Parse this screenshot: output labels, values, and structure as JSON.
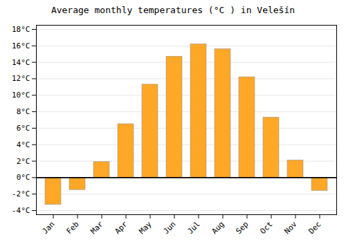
{
  "chart_data": {
    "type": "bar",
    "title": "Average monthly temperatures (°C ) in Velešín",
    "categories": [
      "Jan",
      "Feb",
      "Mar",
      "Apr",
      "May",
      "Jun",
      "Jul",
      "Aug",
      "Sep",
      "Oct",
      "Nov",
      "Dec"
    ],
    "values": [
      -3.3,
      -1.5,
      1.9,
      6.5,
      11.3,
      14.7,
      16.2,
      15.6,
      12.2,
      7.3,
      2.1,
      -1.6
    ],
    "color": "#FFA726",
    "ylim": [
      -4.5,
      18.5
    ],
    "yticks": [
      {
        "value": -4,
        "label": "-4°C"
      },
      {
        "value": -2,
        "label": "-2°C"
      },
      {
        "value": 0,
        "label": "0°C"
      },
      {
        "value": 2,
        "label": "2°C"
      },
      {
        "value": 4,
        "label": "4°C"
      },
      {
        "value": 6,
        "label": "6°C"
      },
      {
        "value": 8,
        "label": "8°C"
      },
      {
        "value": 10,
        "label": "10°C"
      },
      {
        "value": 12,
        "label": "12°C"
      },
      {
        "value": 14,
        "label": "14°C"
      },
      {
        "value": 16,
        "label": "16°C"
      },
      {
        "value": 18,
        "label": "18°C"
      }
    ],
    "grid": true
  }
}
